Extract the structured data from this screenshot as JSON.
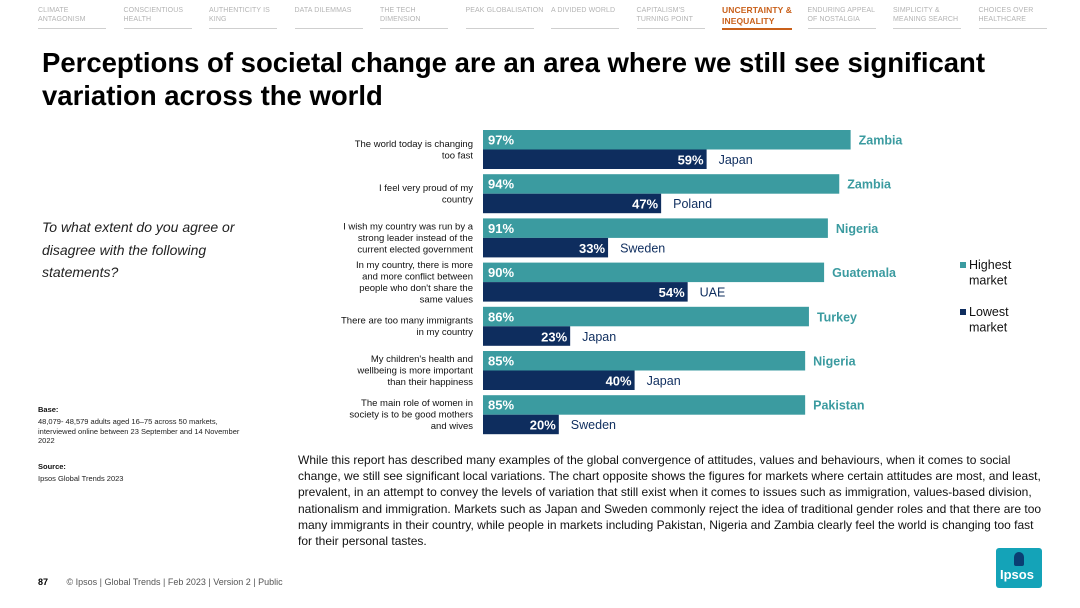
{
  "nav": {
    "items": [
      {
        "label": "Climate antagonism",
        "active": false
      },
      {
        "label": "Conscientious health",
        "active": false
      },
      {
        "label": "Authenticity is king",
        "active": false
      },
      {
        "label": "Data dilemmas",
        "active": false
      },
      {
        "label": "The tech dimension",
        "active": false
      },
      {
        "label": "Peak globalisation",
        "active": false
      },
      {
        "label": "A divided world",
        "active": false
      },
      {
        "label": "Capitalism's turning point",
        "active": false
      },
      {
        "label": "Uncertainty & inequality",
        "active": true
      },
      {
        "label": "Enduring appeal of nostalgia",
        "active": false
      },
      {
        "label": "Simplicity & meaning search",
        "active": false
      },
      {
        "label": "Choices over healthcare",
        "active": false
      }
    ]
  },
  "title": "Perceptions of societal change are an area where we still see significant variation across the world",
  "question": "To what extent do you agree or disagree with the following statements?",
  "base": {
    "label": "Base:",
    "text": "48,079- 48,579 adults aged 16–75 across 50 markets, interviewed online between 23 September and 14 November 2022"
  },
  "source": {
    "label": "Source:",
    "text": "Ipsos Global Trends 2023"
  },
  "colors": {
    "highest": "#3b9ba0",
    "lowest": "#0e2d5e",
    "accent": "#c9601a",
    "highest_text": "#3b9ba0",
    "lowest_text": "#0e2d5e"
  },
  "chart_data": {
    "type": "bar",
    "orientation": "horizontal",
    "categories": [
      "The world today is changing too fast",
      "I feel very proud of my country",
      "I wish my country was run by a strong leader instead of the current elected government",
      "In my country, there is more and more conflict between people who don't share the same values",
      "There are too many immigrants in my country",
      "My children's health and wellbeing is more important than their happiness",
      "The main role of women in society is to be good mothers and wives"
    ],
    "series": [
      {
        "name": "Highest market",
        "values": [
          97,
          94,
          91,
          90,
          86,
          85,
          85
        ],
        "markets": [
          "Zambia",
          "Zambia",
          "Nigeria",
          "Guatemala",
          "Turkey",
          "Nigeria",
          "Pakistan"
        ]
      },
      {
        "name": "Lowest market",
        "values": [
          59,
          47,
          33,
          54,
          23,
          40,
          20
        ],
        "markets": [
          "Japan",
          "Poland",
          "Sweden",
          "UAE",
          "Japan",
          "Japan",
          "Sweden"
        ]
      }
    ],
    "value_suffix": "%",
    "xlim": [
      0,
      100
    ],
    "grid": false,
    "legend_position": "right",
    "legend": [
      {
        "series": 0,
        "label": "Highest market"
      },
      {
        "series": 1,
        "label": "Lowest market"
      }
    ]
  },
  "body_text": "While this report has described many examples of the global convergence of attitudes, values and behaviours, when it comes to social change, we still see significant local variations. The chart opposite shows the figures for markets where certain attitudes are most, and least, prevalent, in an attempt to convey the levels of variation that still exist when it comes to issues such as immigration, values-based division, nationalism and immigration. Markets such as Japan and Sweden commonly reject the idea of traditional gender roles and that there are too many immigrants in their country, while people in markets including Pakistan, Nigeria and Zambia clearly feel the world is changing too fast for their personal tastes.",
  "footer": {
    "page": "87",
    "text": "© Ipsos | Global Trends | Feb 2023 | Version 2 | Public"
  },
  "logo": {
    "text": "Ipsos"
  }
}
